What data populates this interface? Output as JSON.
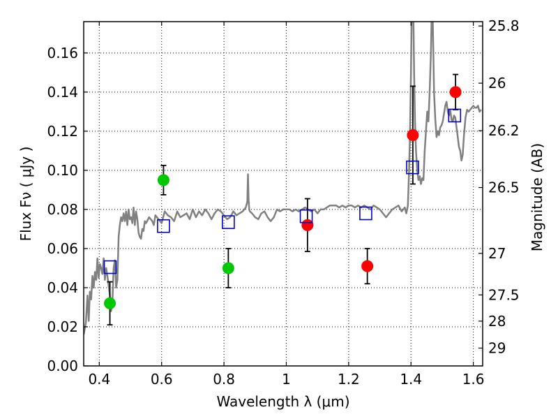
{
  "chart_data": {
    "type": "scatter",
    "xlabel": "Wavelength  λ (μm)",
    "ylabel": "Flux  Fν  ( μJy )",
    "ylabel_right": "Magnitude (AB)",
    "xlim": [
      0.35,
      1.63
    ],
    "ylim": [
      0.0,
      0.176
    ],
    "grid": true,
    "x_ticks": [
      {
        "value": 0.4,
        "label": "0.4"
      },
      {
        "value": 0.6,
        "label": "0.6"
      },
      {
        "value": 0.8,
        "label": "0.8"
      },
      {
        "value": 1.0,
        "label": "1"
      },
      {
        "value": 1.2,
        "label": "1.2"
      },
      {
        "value": 1.4,
        "label": "1.4"
      },
      {
        "value": 1.6,
        "label": "1.6"
      }
    ],
    "y_ticks": [
      {
        "value": 0.0,
        "label": "0.00"
      },
      {
        "value": 0.02,
        "label": "0.02"
      },
      {
        "value": 0.04,
        "label": "0.04"
      },
      {
        "value": 0.06,
        "label": "0.06"
      },
      {
        "value": 0.08,
        "label": "0.08"
      },
      {
        "value": 0.1,
        "label": "0.10"
      },
      {
        "value": 0.12,
        "label": "0.12"
      },
      {
        "value": 0.14,
        "label": "0.14"
      },
      {
        "value": 0.16,
        "label": "0.16"
      }
    ],
    "right_ticks": [
      {
        "mag": 25.8,
        "label": "25.8"
      },
      {
        "mag": 26.0,
        "label": "26"
      },
      {
        "mag": 26.2,
        "label": "26.2"
      },
      {
        "mag": 26.5,
        "label": "26.5"
      },
      {
        "mag": 27.0,
        "label": "27"
      },
      {
        "mag": 27.5,
        "label": "27.5"
      },
      {
        "mag": 28.0,
        "label": "28"
      },
      {
        "mag": 29.0,
        "label": "29"
      }
    ],
    "series": [
      {
        "kind": "line",
        "color": "#808080",
        "x": [
          0.35,
          0.357,
          0.362,
          0.366,
          0.37,
          0.374,
          0.378,
          0.382,
          0.386,
          0.39,
          0.394,
          0.398,
          0.402,
          0.406,
          0.41,
          0.414,
          0.418,
          0.422,
          0.426,
          0.43,
          0.434,
          0.438,
          0.442,
          0.446,
          0.45,
          0.454,
          0.458,
          0.462,
          0.466,
          0.47,
          0.474,
          0.478,
          0.482,
          0.486,
          0.49,
          0.494,
          0.498,
          0.502,
          0.506,
          0.51,
          0.514,
          0.518,
          0.522,
          0.526,
          0.53,
          0.534,
          0.538,
          0.542,
          0.546,
          0.55,
          0.56,
          0.57,
          0.575,
          0.58,
          0.59,
          0.6,
          0.61,
          0.62,
          0.63,
          0.64,
          0.65,
          0.66,
          0.67,
          0.68,
          0.69,
          0.7,
          0.71,
          0.72,
          0.73,
          0.74,
          0.75,
          0.76,
          0.77,
          0.78,
          0.79,
          0.8,
          0.81,
          0.82,
          0.83,
          0.84,
          0.85,
          0.86,
          0.87,
          0.875,
          0.877,
          0.879,
          0.881,
          0.883,
          0.89,
          0.9,
          0.91,
          0.92,
          0.93,
          0.94,
          0.95,
          0.96,
          0.97,
          0.98,
          0.99,
          1.0,
          1.01,
          1.02,
          1.03,
          1.04,
          1.05,
          1.06,
          1.07,
          1.08,
          1.09,
          1.1,
          1.11,
          1.12,
          1.13,
          1.14,
          1.15,
          1.16,
          1.17,
          1.18,
          1.19,
          1.2,
          1.21,
          1.22,
          1.23,
          1.24,
          1.25,
          1.26,
          1.27,
          1.28,
          1.29,
          1.3,
          1.31,
          1.32,
          1.33,
          1.34,
          1.35,
          1.36,
          1.37,
          1.38,
          1.385,
          1.39,
          1.394,
          1.397,
          1.4,
          1.402,
          1.404,
          1.406,
          1.408,
          1.41,
          1.413,
          1.416,
          1.42,
          1.424,
          1.428,
          1.432,
          1.436,
          1.44,
          1.444,
          1.448,
          1.452,
          1.456,
          1.46,
          1.462,
          1.464,
          1.466,
          1.468,
          1.47,
          1.474,
          1.478,
          1.482,
          1.486,
          1.49,
          1.494,
          1.498,
          1.502,
          1.506,
          1.51,
          1.514,
          1.518,
          1.522,
          1.526,
          1.53,
          1.534,
          1.538,
          1.542,
          1.546,
          1.55,
          1.554,
          1.558,
          1.562,
          1.566,
          1.57,
          1.575,
          1.58,
          1.585,
          1.59,
          1.595,
          1.6,
          1.605,
          1.61,
          1.615,
          1.62,
          1.625
        ],
        "y": [
          0.016,
          0.022,
          0.036,
          0.023,
          0.038,
          0.034,
          0.046,
          0.04,
          0.048,
          0.044,
          0.055,
          0.045,
          0.052,
          0.05,
          0.047,
          0.055,
          0.044,
          0.05,
          0.046,
          0.041,
          0.036,
          0.028,
          0.032,
          0.05,
          0.054,
          0.04,
          0.044,
          0.066,
          0.072,
          0.076,
          0.074,
          0.078,
          0.074,
          0.079,
          0.072,
          0.08,
          0.075,
          0.076,
          0.073,
          0.081,
          0.072,
          0.079,
          0.075,
          0.068,
          0.066,
          0.065,
          0.07,
          0.069,
          0.074,
          0.073,
          0.076,
          0.074,
          0.072,
          0.077,
          0.075,
          0.073,
          0.079,
          0.077,
          0.076,
          0.074,
          0.079,
          0.076,
          0.077,
          0.078,
          0.075,
          0.08,
          0.076,
          0.079,
          0.077,
          0.08,
          0.078,
          0.075,
          0.078,
          0.08,
          0.079,
          0.077,
          0.075,
          0.076,
          0.079,
          0.077,
          0.078,
          0.079,
          0.081,
          0.084,
          0.098,
          0.085,
          0.08,
          0.079,
          0.078,
          0.076,
          0.075,
          0.078,
          0.079,
          0.076,
          0.074,
          0.076,
          0.08,
          0.079,
          0.08,
          0.08,
          0.08,
          0.079,
          0.08,
          0.079,
          0.08,
          0.081,
          0.08,
          0.079,
          0.08,
          0.078,
          0.08,
          0.08,
          0.081,
          0.082,
          0.082,
          0.082,
          0.081,
          0.082,
          0.081,
          0.082,
          0.082,
          0.081,
          0.082,
          0.081,
          0.082,
          0.081,
          0.08,
          0.082,
          0.081,
          0.08,
          0.078,
          0.076,
          0.078,
          0.08,
          0.081,
          0.082,
          0.079,
          0.081,
          0.078,
          0.082,
          0.1,
          0.12,
          0.15,
          0.176,
          0.176,
          0.176,
          0.176,
          0.15,
          0.125,
          0.11,
          0.1,
          0.095,
          0.097,
          0.093,
          0.096,
          0.095,
          0.11,
          0.12,
          0.13,
          0.125,
          0.14,
          0.15,
          0.16,
          0.176,
          0.176,
          0.176,
          0.14,
          0.126,
          0.117,
          0.12,
          0.118,
          0.122,
          0.123,
          0.125,
          0.129,
          0.133,
          0.135,
          0.13,
          0.128,
          0.131,
          0.126,
          0.125,
          0.128,
          0.127,
          0.122,
          0.117,
          0.112,
          0.11,
          0.105,
          0.108,
          0.118,
          0.127,
          0.131,
          0.13,
          0.131,
          0.132,
          0.133,
          0.132,
          0.132,
          0.133,
          0.13,
          0.131
        ]
      },
      {
        "kind": "points",
        "color": "#00c800",
        "marker": "circle",
        "points": [
          {
            "x": 0.434,
            "y": 0.032,
            "err": 0.011
          },
          {
            "x": 0.606,
            "y": 0.095,
            "err": 0.0075
          },
          {
            "x": 0.814,
            "y": 0.05,
            "err": 0.01
          }
        ]
      },
      {
        "kind": "points",
        "color": "#ff0000",
        "marker": "circle",
        "points": [
          {
            "x": 1.068,
            "y": 0.072,
            "err": 0.0135
          },
          {
            "x": 1.26,
            "y": 0.051,
            "err": 0.009
          },
          {
            "x": 1.406,
            "y": 0.118,
            "err": 0.025
          },
          {
            "x": 1.543,
            "y": 0.14,
            "err": 0.009
          }
        ]
      },
      {
        "kind": "points",
        "color": "#0000cc",
        "marker": "open-square",
        "points": [
          {
            "x": 0.435,
            "y": 0.0505
          },
          {
            "x": 0.606,
            "y": 0.0715
          },
          {
            "x": 0.814,
            "y": 0.0735
          },
          {
            "x": 1.064,
            "y": 0.0765
          },
          {
            "x": 1.255,
            "y": 0.078
          },
          {
            "x": 1.405,
            "y": 0.1015
          },
          {
            "x": 1.54,
            "y": 0.128
          }
        ]
      }
    ]
  }
}
